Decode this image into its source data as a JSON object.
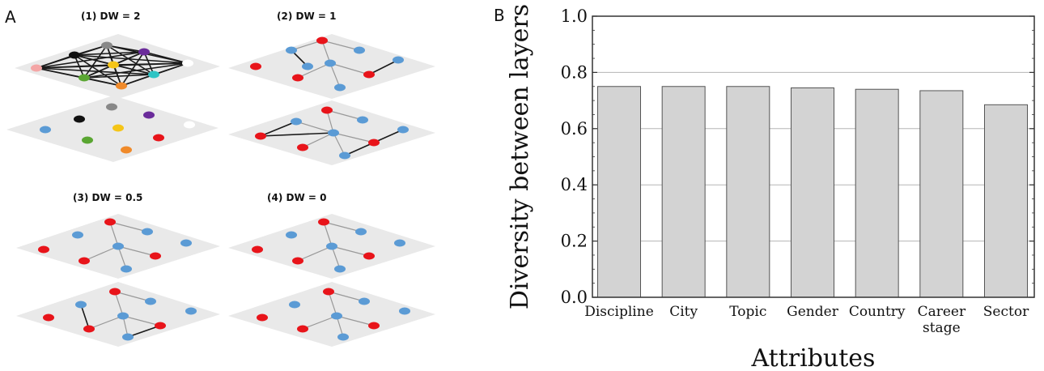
{
  "panel_a": {
    "letter": "A",
    "panels": [
      {
        "label": "(1)  DW = 2"
      },
      {
        "label": "(2)  DW = 1"
      },
      {
        "label": "(3)  DW = 0.5"
      },
      {
        "label": "(4)  DW = 0"
      }
    ],
    "colors": {
      "red": "#e8141a",
      "blue": "#5b9bd5",
      "plate": "#e9e9e9"
    }
  },
  "chart_data": {
    "panel_letter": "B",
    "type": "bar",
    "categories": [
      "Discipline",
      "City",
      "Topic",
      "Gender",
      "Country",
      "Career stage",
      "Sector"
    ],
    "category_display": [
      [
        "Discipline"
      ],
      [
        "City"
      ],
      [
        "Topic"
      ],
      [
        "Gender"
      ],
      [
        "Country"
      ],
      [
        "Career",
        "stage"
      ],
      [
        "Sector"
      ]
    ],
    "values": [
      0.75,
      0.75,
      0.75,
      0.745,
      0.74,
      0.735,
      0.685
    ],
    "xlabel": "Attributes",
    "ylabel": "Diversity between layers",
    "ylim": [
      0,
      1.0
    ],
    "yticks": [
      0.0,
      0.2,
      0.4,
      0.6,
      0.8,
      1.0
    ],
    "ytick_labels": [
      "0.0",
      "0.2",
      "0.4",
      "0.6",
      "0.8",
      "1.0"
    ],
    "grid": "horizontal",
    "bar_color": "#d3d3d3",
    "bar_edge": "#555555"
  }
}
